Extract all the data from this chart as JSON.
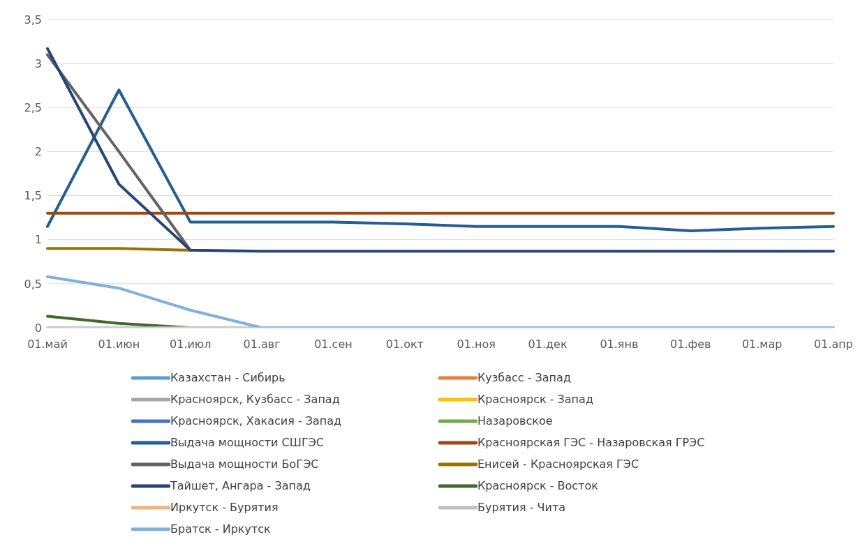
{
  "chart_data": {
    "type": "line",
    "categories": [
      "01.май",
      "01.июн",
      "01.июл",
      "01.авг",
      "01.сен",
      "01.окт",
      "01.ноя",
      "01.дек",
      "01.янв",
      "01.фев",
      "01.мар",
      "01.апр"
    ],
    "ylim": [
      0,
      3.5
    ],
    "yticks": [
      0,
      {
        "value": 0.5,
        "label": "0,5"
      },
      1,
      {
        "value": 1.5,
        "label": "1,5"
      },
      2,
      {
        "value": 2.5,
        "label": "2,5"
      },
      3,
      {
        "value": 3.5,
        "label": "3,5"
      }
    ],
    "grid": "y",
    "legend": "bottom",
    "marker": "none",
    "line_style": "solid",
    "series": [
      {
        "name": "Казахстан - Сибирь",
        "color": "#5b9bd5",
        "values": [
          null,
          null,
          null,
          null,
          null,
          null,
          null,
          null,
          null,
          null,
          null,
          null
        ]
      },
      {
        "name": "Кузбасс - Запад",
        "color": "#ed7d31",
        "values": [
          null,
          null,
          null,
          null,
          null,
          null,
          null,
          null,
          null,
          null,
          null,
          null
        ]
      },
      {
        "name": "Красноярск, Кузбасс - Запад",
        "color": "#a5a5a5",
        "values": [
          null,
          null,
          null,
          null,
          null,
          null,
          null,
          null,
          null,
          null,
          null,
          null
        ]
      },
      {
        "name": "Красноярск - Запад",
        "color": "#ffc000",
        "values": [
          null,
          null,
          null,
          null,
          null,
          null,
          null,
          null,
          null,
          null,
          null,
          null
        ]
      },
      {
        "name": "Красноярск, Хакасия - Запад",
        "color": "#4472c4",
        "values": [
          null,
          null,
          null,
          null,
          null,
          null,
          null,
          null,
          null,
          null,
          null,
          null
        ]
      },
      {
        "name": "Назаровское",
        "color": "#70ad47",
        "values": [
          null,
          null,
          null,
          null,
          null,
          null,
          null,
          null,
          null,
          null,
          null,
          null
        ]
      },
      {
        "name": "Выдача мощности СШГЭС",
        "color": "#255e91",
        "values": [
          1.15,
          2.7,
          1.2,
          1.2,
          1.2,
          1.18,
          1.15,
          1.15,
          1.15,
          1.1,
          1.13,
          1.15
        ]
      },
      {
        "name": "Красноярская ГЭС - Назаровская ГРЭС",
        "color": "#9e480e",
        "values": [
          1.3,
          1.3,
          1.3,
          1.3,
          1.3,
          1.3,
          1.3,
          1.3,
          1.3,
          1.3,
          1.3,
          1.3
        ]
      },
      {
        "name": "Выдача мощности БоГЭС",
        "color": "#636363",
        "values": [
          3.1,
          2,
          0.88,
          null,
          null,
          null,
          null,
          null,
          null,
          null,
          null,
          null
        ]
      },
      {
        "name": "Енисей - Красноярская ГЭС",
        "color": "#997300",
        "values": [
          0.9,
          0.9,
          0.88,
          null,
          null,
          null,
          null,
          null,
          null,
          null,
          null,
          null
        ]
      },
      {
        "name": "Тайшет, Ангара - Запад",
        "color": "#264478",
        "values": [
          3.17,
          1.63,
          0.88,
          0.87,
          0.87,
          0.87,
          0.87,
          0.87,
          0.87,
          0.87,
          0.87,
          0.87
        ]
      },
      {
        "name": "Красноярск - Восток",
        "color": "#43682b",
        "values": [
          0.13,
          0.05,
          0,
          null,
          null,
          null,
          null,
          null,
          null,
          null,
          null,
          null
        ]
      },
      {
        "name": "Иркутск - Бурятия",
        "color": "#f4b183",
        "values": [
          null,
          null,
          null,
          null,
          null,
          null,
          null,
          null,
          null,
          null,
          null,
          null
        ]
      },
      {
        "name": "Бурятия - Чита",
        "color": "#c0c0c0",
        "values": [
          0,
          0,
          0,
          0,
          null,
          null,
          null,
          null,
          null,
          null,
          null,
          null
        ]
      },
      {
        "name": "Братск - Иркутск",
        "color": "#7fb0de",
        "values": [
          0.58,
          0.45,
          0.2,
          0,
          0,
          0,
          0,
          0,
          0,
          0,
          0,
          0
        ]
      }
    ]
  }
}
